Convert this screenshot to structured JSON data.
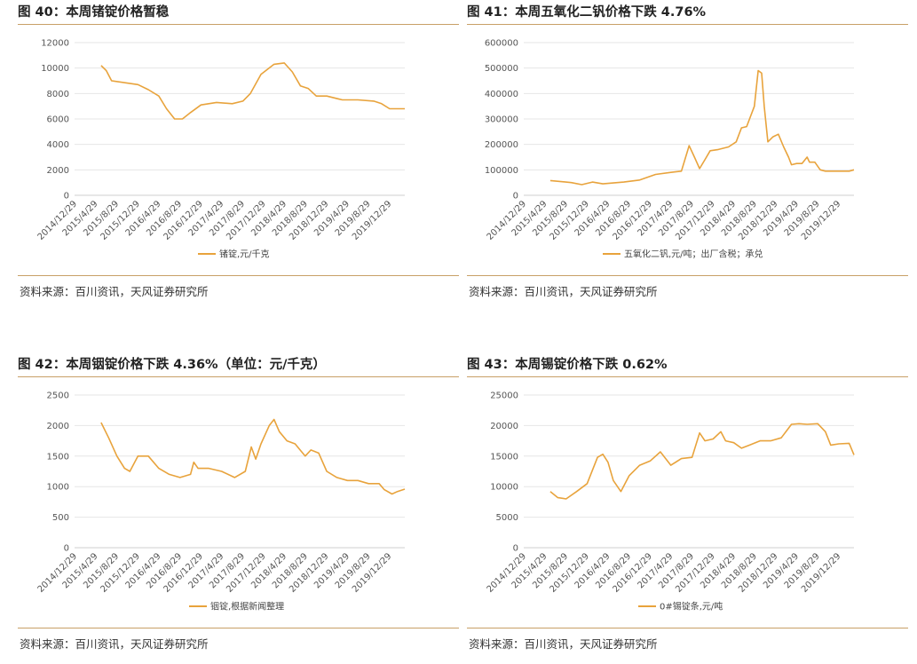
{
  "footer_source": "资料来源：百川资讯，天风证券研究所",
  "colors": {
    "series": "#e8a33c",
    "rule": "#c8a067",
    "grid": "#e6e6e6"
  },
  "date_ticks": [
    "2014/12/29",
    "2015/4/29",
    "2015/8/29",
    "2015/12/29",
    "2016/4/29",
    "2016/8/29",
    "2016/12/29",
    "2017/4/29",
    "2017/8/29",
    "2017/12/29",
    "2018/4/29",
    "2018/8/29",
    "2018/12/29",
    "2019/4/29",
    "2019/8/29",
    "2019/12/29"
  ],
  "chart_data": [
    {
      "type": "line",
      "title": "图 40：本周锗锭价格暂稳",
      "x_range": [
        "2014/12/29",
        "2020/3/29"
      ],
      "ylim": [
        0,
        12000
      ],
      "y_ticks": [
        "0",
        "2000",
        "4000",
        "6000",
        "8000",
        "10000",
        "12000"
      ],
      "grid": true,
      "legend": "bottom",
      "series": [
        {
          "name": "锗锭,元/千克",
          "x": [
            "2015/6/1",
            "2015/7/1",
            "2015/8/1",
            "2016/1/1",
            "2016/3/1",
            "2016/5/1",
            "2016/6/15",
            "2016/8/1",
            "2016/9/15",
            "2016/11/1",
            "2017/1/1",
            "2017/4/1",
            "2017/7/1",
            "2017/9/1",
            "2017/10/15",
            "2017/12/15",
            "2018/3/1",
            "2018/4/29",
            "2018/6/15",
            "2018/8/1",
            "2018/9/15",
            "2018/11/1",
            "2019/1/1",
            "2019/4/1",
            "2019/7/1",
            "2019/10/1",
            "2019/11/15",
            "2020/1/1",
            "2020/3/29"
          ],
          "y": [
            10200,
            9800,
            9000,
            8700,
            8300,
            7800,
            6800,
            6000,
            6000,
            6500,
            7100,
            7300,
            7200,
            7400,
            8000,
            9500,
            10300,
            10400,
            9700,
            8600,
            8400,
            7800,
            7800,
            7500,
            7500,
            7400,
            7200,
            6800,
            6800
          ]
        }
      ]
    },
    {
      "type": "line",
      "title": "图 41：本周五氧化二钒价格下跌 4.76%",
      "x_range": [
        "2014/12/29",
        "2020/3/29"
      ],
      "ylim": [
        0,
        600000
      ],
      "y_ticks": [
        "0",
        "100000",
        "200000",
        "300000",
        "400000",
        "500000",
        "600000"
      ],
      "grid": true,
      "legend": "bottom",
      "series": [
        {
          "name": "五氧化二钒,元/吨；出厂含税；承兑",
          "x": [
            "2015/6/1",
            "2015/10/1",
            "2015/12/1",
            "2016/2/1",
            "2016/4/1",
            "2016/8/1",
            "2016/11/1",
            "2017/2/1",
            "2017/5/1",
            "2017/7/1",
            "2017/8/15",
            "2017/9/15",
            "2017/10/15",
            "2017/11/15",
            "2017/12/15",
            "2018/2/1",
            "2018/4/1",
            "2018/5/15",
            "2018/6/15",
            "2018/7/15",
            "2018/8/29",
            "2018/9/20",
            "2018/10/10",
            "2018/10/25",
            "2018/11/15",
            "2018/12/15",
            "2019/1/15",
            "2019/2/15",
            "2019/3/15",
            "2019/4/1",
            "2019/5/1",
            "2019/6/1",
            "2019/7/1",
            "2019/7/15",
            "2019/8/15",
            "2019/9/15",
            "2019/10/15",
            "2020/1/1",
            "2020/3/1",
            "2020/3/29"
          ],
          "y": [
            58000,
            50000,
            42000,
            52000,
            45000,
            52000,
            60000,
            82000,
            90000,
            95000,
            195000,
            150000,
            105000,
            140000,
            175000,
            180000,
            190000,
            210000,
            265000,
            270000,
            350000,
            490000,
            480000,
            350000,
            210000,
            230000,
            240000,
            190000,
            150000,
            120000,
            125000,
            125000,
            150000,
            130000,
            130000,
            100000,
            95000,
            95000,
            95000,
            100000
          ]
        }
      ]
    },
    {
      "type": "line",
      "title": "图 42：本周铟锭价格下跌 4.36%（单位：元/千克）",
      "x_range": [
        "2014/12/29",
        "2020/3/29"
      ],
      "ylim": [
        0,
        2500
      ],
      "y_ticks": [
        "0",
        "500",
        "1000",
        "1500",
        "2000",
        "2500"
      ],
      "grid": true,
      "legend": "bottom",
      "series": [
        {
          "name": "铟锭,根据新闻整理",
          "x": [
            "2015/6/1",
            "2015/7/15",
            "2015/9/1",
            "2015/10/15",
            "2015/11/15",
            "2016/1/1",
            "2016/3/1",
            "2016/5/1",
            "2016/7/1",
            "2016/9/1",
            "2016/11/1",
            "2016/11/20",
            "2016/12/15",
            "2017/2/15",
            "2017/5/1",
            "2017/7/15",
            "2017/9/15",
            "2017/10/20",
            "2017/11/15",
            "2017/12/15",
            "2018/2/1",
            "2018/3/1",
            "2018/4/1",
            "2018/5/15",
            "2018/7/1",
            "2018/8/29",
            "2018/10/1",
            "2018/11/15",
            "2019/1/1",
            "2019/3/1",
            "2019/5/1",
            "2019/7/1",
            "2019/9/1",
            "2019/11/1",
            "2019/12/1",
            "2020/1/15",
            "2020/2/15",
            "2020/3/29"
          ],
          "y": [
            2050,
            1800,
            1500,
            1300,
            1250,
            1500,
            1500,
            1300,
            1200,
            1150,
            1200,
            1400,
            1300,
            1300,
            1250,
            1150,
            1250,
            1650,
            1450,
            1700,
            2000,
            2100,
            1900,
            1750,
            1700,
            1500,
            1600,
            1550,
            1250,
            1150,
            1100,
            1100,
            1050,
            1050,
            950,
            880,
            920,
            960
          ]
        }
      ]
    },
    {
      "type": "line",
      "title": "图 43：本周锡锭价格下跌 0.62%",
      "x_range": [
        "2014/12/29",
        "2020/3/29"
      ],
      "ylim": [
        0,
        25000
      ],
      "y_ticks": [
        "0",
        "5000",
        "10000",
        "15000",
        "20000",
        "25000"
      ],
      "grid": true,
      "legend": "bottom",
      "series": [
        {
          "name": "0#锡锭条,元/吨",
          "x": [
            "2015/6/1",
            "2015/7/15",
            "2015/9/1",
            "2015/11/1",
            "2016/1/1",
            "2016/3/1",
            "2016/4/1",
            "2016/5/1",
            "2016/6/1",
            "2016/7/15",
            "2016/9/1",
            "2016/11/1",
            "2017/1/1",
            "2017/3/1",
            "2017/5/1",
            "2017/7/1",
            "2017/9/1",
            "2017/10/15",
            "2017/11/15",
            "2018/1/1",
            "2018/2/15",
            "2018/3/15",
            "2018/5/1",
            "2018/6/15",
            "2018/8/1",
            "2018/10/1",
            "2018/12/1",
            "2019/2/1",
            "2019/4/1",
            "2019/5/15",
            "2019/7/1",
            "2019/9/1",
            "2019/10/15",
            "2019/11/15",
            "2020/1/1",
            "2020/3/1",
            "2020/3/29"
          ],
          "y": [
            9200,
            8200,
            8000,
            9200,
            10500,
            14800,
            15300,
            14000,
            11000,
            9200,
            11800,
            13500,
            14200,
            15700,
            13500,
            14600,
            14800,
            18800,
            17500,
            17800,
            19000,
            17500,
            17200,
            16300,
            16800,
            17500,
            17500,
            18000,
            20200,
            20300,
            20200,
            20300,
            19000,
            16800,
            17000,
            17100,
            15200
          ]
        }
      ]
    }
  ]
}
